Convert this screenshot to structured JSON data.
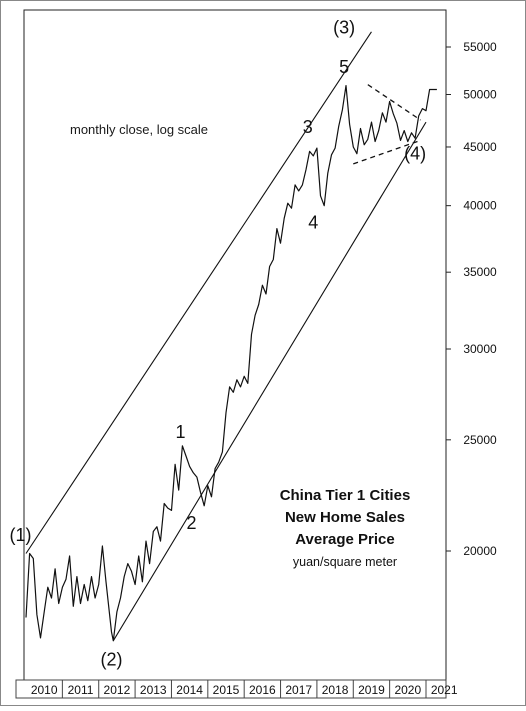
{
  "chart_data": {
    "type": "line",
    "title": "China Tier 1 Cities New Home Sales Average Price",
    "title_lines": [
      "China Tier 1 Cities",
      "New Home Sales",
      "Average Price"
    ],
    "ylabel": "yuan/square meter",
    "note": "monthly close, log scale",
    "y_scale": "log",
    "ylim": [
      16000,
      58000
    ],
    "xlim": [
      2010.0,
      2021.75
    ],
    "grid": false,
    "x_tick_labels": [
      "2010",
      "2011",
      "2012",
      "2013",
      "2014",
      "2015",
      "2016",
      "2017",
      "2018",
      "2019",
      "2020",
      "2021"
    ],
    "y_ticks": [
      20000,
      25000,
      30000,
      35000,
      40000,
      45000,
      50000,
      55000
    ],
    "y_tick_labels": [
      "20000",
      "25000",
      "30000",
      "35000",
      "40000",
      "45000",
      "50000",
      "55000"
    ],
    "series": [
      {
        "values": [
          [
            2010.0,
            17500
          ],
          [
            2010.1,
            19900
          ],
          [
            2010.2,
            19700
          ],
          [
            2010.3,
            17600
          ],
          [
            2010.4,
            16800
          ],
          [
            2010.5,
            17700
          ],
          [
            2010.6,
            18600
          ],
          [
            2010.7,
            18200
          ],
          [
            2010.8,
            19300
          ],
          [
            2010.9,
            18000
          ],
          [
            2011.0,
            18600
          ],
          [
            2011.1,
            18900
          ],
          [
            2011.2,
            19800
          ],
          [
            2011.3,
            17900
          ],
          [
            2011.4,
            19000
          ],
          [
            2011.5,
            18000
          ],
          [
            2011.6,
            18700
          ],
          [
            2011.7,
            18100
          ],
          [
            2011.8,
            19000
          ],
          [
            2011.9,
            18200
          ],
          [
            2012.0,
            18700
          ],
          [
            2012.1,
            20200
          ],
          [
            2012.2,
            18800
          ],
          [
            2012.3,
            17600
          ],
          [
            2012.35,
            17000
          ],
          [
            2012.4,
            16700
          ],
          [
            2012.5,
            17700
          ],
          [
            2012.6,
            18200
          ],
          [
            2012.7,
            19000
          ],
          [
            2012.8,
            19500
          ],
          [
            2012.9,
            19200
          ],
          [
            2013.0,
            18700
          ],
          [
            2013.1,
            19800
          ],
          [
            2013.2,
            18800
          ],
          [
            2013.3,
            20400
          ],
          [
            2013.4,
            19500
          ],
          [
            2013.5,
            20800
          ],
          [
            2013.6,
            21000
          ],
          [
            2013.7,
            20400
          ],
          [
            2013.8,
            22000
          ],
          [
            2013.9,
            21800
          ],
          [
            2014.0,
            21700
          ],
          [
            2014.1,
            23800
          ],
          [
            2014.2,
            22600
          ],
          [
            2014.3,
            24700
          ],
          [
            2014.4,
            24200
          ],
          [
            2014.5,
            23700
          ],
          [
            2014.6,
            23400
          ],
          [
            2014.7,
            23200
          ],
          [
            2014.8,
            22500
          ],
          [
            2014.9,
            21900
          ],
          [
            2015.0,
            22800
          ],
          [
            2015.1,
            22300
          ],
          [
            2015.2,
            23600
          ],
          [
            2015.3,
            23900
          ],
          [
            2015.4,
            24400
          ],
          [
            2015.5,
            26400
          ],
          [
            2015.6,
            27800
          ],
          [
            2015.7,
            27500
          ],
          [
            2015.8,
            28200
          ],
          [
            2015.9,
            27800
          ],
          [
            2016.0,
            28400
          ],
          [
            2016.1,
            28000
          ],
          [
            2016.2,
            30900
          ],
          [
            2016.3,
            32100
          ],
          [
            2016.4,
            32800
          ],
          [
            2016.5,
            34100
          ],
          [
            2016.6,
            33500
          ],
          [
            2016.7,
            35400
          ],
          [
            2016.8,
            35900
          ],
          [
            2016.9,
            38200
          ],
          [
            2017.0,
            37100
          ],
          [
            2017.1,
            39000
          ],
          [
            2017.2,
            40200
          ],
          [
            2017.3,
            39800
          ],
          [
            2017.4,
            41700
          ],
          [
            2017.5,
            41200
          ],
          [
            2017.6,
            41700
          ],
          [
            2017.7,
            43000
          ],
          [
            2017.8,
            44600
          ],
          [
            2017.9,
            44200
          ],
          [
            2018.0,
            44900
          ],
          [
            2018.1,
            40800
          ],
          [
            2018.2,
            40000
          ],
          [
            2018.3,
            42700
          ],
          [
            2018.4,
            44300
          ],
          [
            2018.5,
            44900
          ],
          [
            2018.6,
            46900
          ],
          [
            2018.7,
            48500
          ],
          [
            2018.8,
            50900
          ],
          [
            2018.9,
            47100
          ],
          [
            2019.0,
            45000
          ],
          [
            2019.1,
            44400
          ],
          [
            2019.2,
            46700
          ],
          [
            2019.3,
            45200
          ],
          [
            2019.4,
            45700
          ],
          [
            2019.5,
            47300
          ],
          [
            2019.6,
            45500
          ],
          [
            2019.7,
            46500
          ],
          [
            2019.8,
            48200
          ],
          [
            2019.9,
            47300
          ],
          [
            2020.0,
            49300
          ],
          [
            2020.1,
            48100
          ],
          [
            2020.2,
            47200
          ],
          [
            2020.3,
            45600
          ],
          [
            2020.4,
            46500
          ],
          [
            2020.5,
            45500
          ],
          [
            2020.6,
            46300
          ],
          [
            2020.7,
            45800
          ],
          [
            2020.8,
            47900
          ],
          [
            2020.9,
            48600
          ],
          [
            2021.0,
            48400
          ],
          [
            2021.1,
            50500
          ],
          [
            2021.2,
            50500
          ],
          [
            2021.3,
            50500
          ]
        ]
      }
    ],
    "channel_lines": [
      {
        "from": [
          2010.0,
          19900
        ],
        "to": [
          2019.5,
          56700
        ]
      },
      {
        "from": [
          2012.4,
          16700
        ],
        "to": [
          2021.0,
          47300
        ]
      }
    ],
    "triangle_lines": [
      {
        "from": [
          2019.4,
          51000
        ],
        "to": [
          2020.85,
          47500
        ]
      },
      {
        "from": [
          2019.0,
          43500
        ],
        "to": [
          2020.85,
          45600
        ]
      }
    ],
    "annotations": [
      {
        "text": "(1)",
        "x": 2009.85,
        "y": 20400
      },
      {
        "text": "(2)",
        "x": 2012.35,
        "y": 15900
      },
      {
        "text": "1",
        "x": 2014.25,
        "y": 25100
      },
      {
        "text": "2",
        "x": 2014.55,
        "y": 20900
      },
      {
        "text": "3",
        "x": 2017.75,
        "y": 46300
      },
      {
        "text": "4",
        "x": 2017.9,
        "y": 38200
      },
      {
        "text": "(3)",
        "x": 2018.75,
        "y": 56500
      },
      {
        "text": "5",
        "x": 2018.75,
        "y": 52200
      },
      {
        "text": "(4)",
        "x": 2020.7,
        "y": 43900
      }
    ]
  }
}
